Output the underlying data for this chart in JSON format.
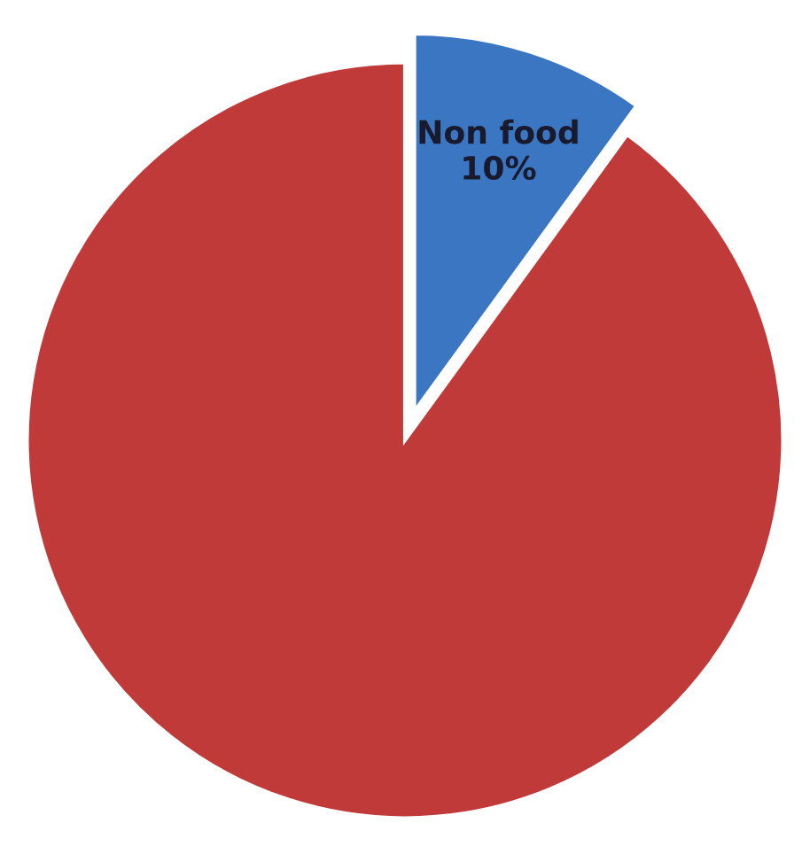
{
  "chart_data": {
    "type": "pie",
    "categories": [
      "Non food",
      null
    ],
    "values": [
      10,
      90
    ],
    "colors": [
      "#3a76c2",
      "#c03a3a"
    ],
    "value_labels": [
      "10%",
      null
    ],
    "legend": false
  }
}
